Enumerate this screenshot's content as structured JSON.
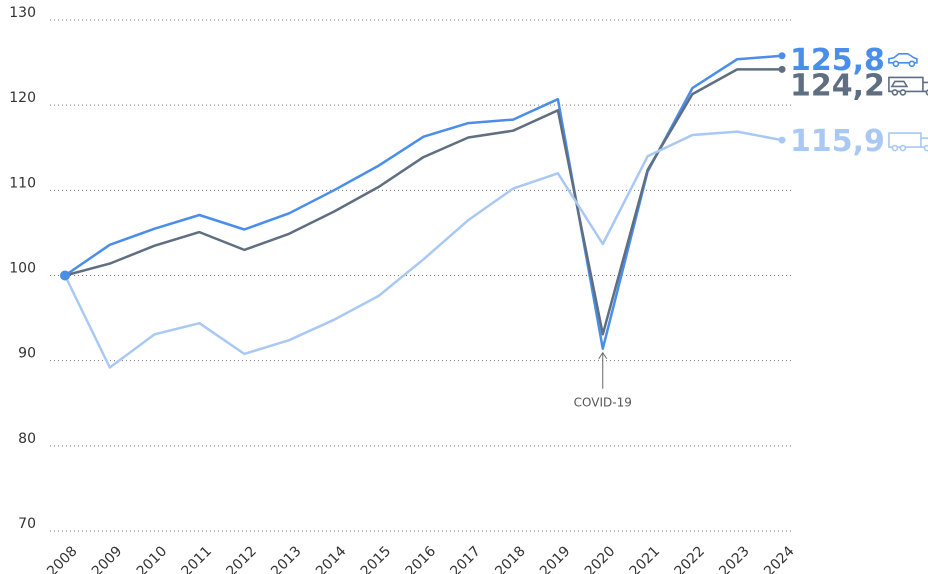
{
  "chart_data": {
    "type": "line",
    "categories": [
      "2008",
      "2009",
      "2010",
      "2011",
      "2012",
      "2013",
      "2014",
      "2015",
      "2016",
      "2017",
      "2018",
      "2019",
      "2020",
      "2021",
      "2022",
      "2023",
      "2024"
    ],
    "series": [
      {
        "color": "#4a8eea",
        "values": [
          100,
          103.6,
          105.5,
          107.1,
          105.4,
          107.3,
          110.0,
          112.9,
          116.3,
          117.9,
          118.3,
          120.7,
          91.4,
          112.2,
          122.0,
          125.4,
          125.8
        ],
        "value_labels": {
          "16": "125,8"
        }
      },
      {
        "color": "#5f6e80",
        "values": [
          100,
          101.4,
          103.5,
          105.1,
          103.0,
          104.9,
          107.5,
          110.4,
          113.9,
          116.2,
          117.0,
          119.4,
          93.1,
          112.4,
          121.3,
          124.2,
          124.2
        ],
        "value_labels": {
          "16": "124,2"
        }
      },
      {
        "color": "#a9c8f3",
        "values": [
          100,
          89.2,
          93.1,
          94.4,
          90.8,
          92.4,
          94.8,
          97.6,
          101.9,
          106.5,
          110.2,
          112.0,
          103.7,
          114.0,
          116.5,
          116.9,
          115.9
        ],
        "value_labels": {
          "16": "115,9"
        }
      }
    ],
    "ylim": [
      70,
      130
    ],
    "yticks": [
      70,
      80,
      90,
      100,
      110,
      120,
      130
    ],
    "grid": true,
    "annotations": [
      {
        "text": "COVID-19",
        "x": "2020"
      }
    ]
  }
}
